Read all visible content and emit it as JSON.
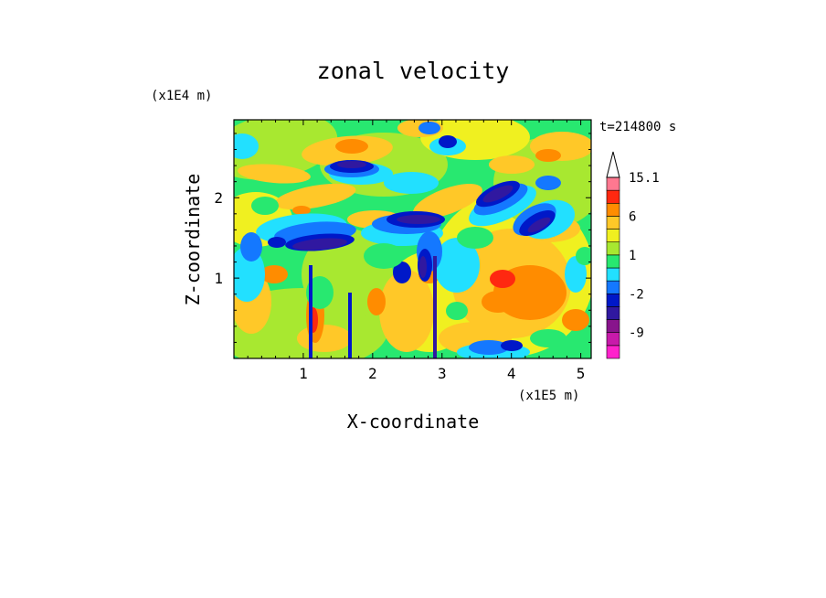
{
  "chart_data": {
    "type": "heatmap",
    "title": "zonal velocity",
    "xlabel": "X-coordinate",
    "ylabel": "Z-coordinate",
    "x_unit": "(x1E5 m)",
    "y_unit": "(x1E4 m)",
    "time_label": "t=214800 s",
    "xlim": [
      0,
      5.15
    ],
    "ylim": [
      0,
      2.97
    ],
    "x_ticks": [
      1,
      2,
      3,
      4,
      5
    ],
    "y_ticks": [
      1,
      2
    ],
    "colorbar": {
      "tick_labels": [
        "15.1",
        "6",
        "1",
        "-2",
        "-9"
      ],
      "tick_values": [
        15.1,
        6,
        1,
        -2,
        -9
      ],
      "levels": [
        -16,
        -12,
        -9,
        -6,
        -4,
        -2,
        -1,
        0,
        1,
        2,
        4,
        6,
        9,
        12,
        15.1
      ],
      "colors": [
        "#ff22cc",
        "#c81aaa",
        "#88148c",
        "#3018a0",
        "#0018c8",
        "#1478ff",
        "#22e0ff",
        "#28e870",
        "#a8e830",
        "#f0f020",
        "#ffc828",
        "#ff8c00",
        "#ff2810",
        "#ff7890",
        "#ffc8c8"
      ],
      "extend_max": true
    }
  }
}
